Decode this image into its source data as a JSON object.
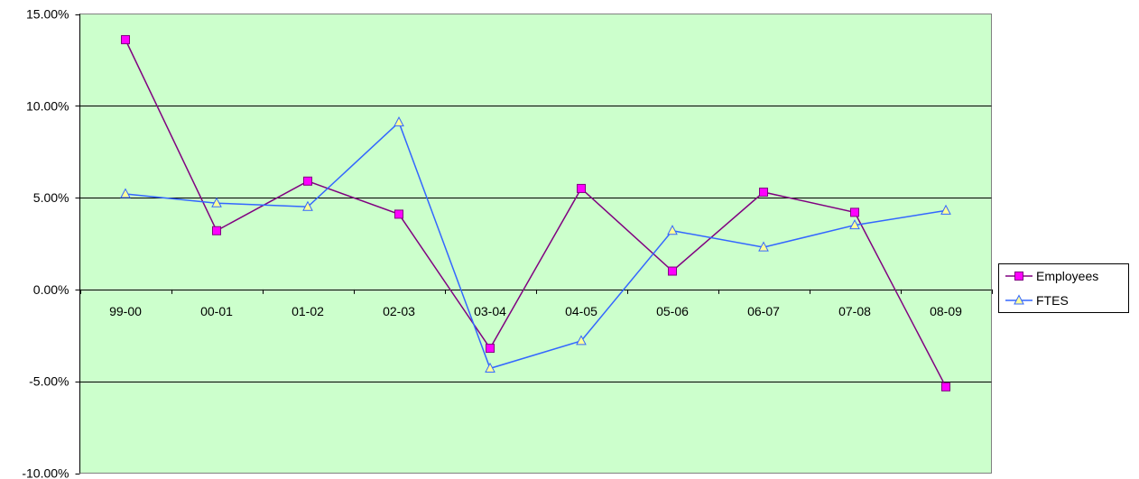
{
  "chart_data": {
    "type": "line",
    "categories": [
      "99-00",
      "00-01",
      "01-02",
      "02-03",
      "03-04",
      "04-05",
      "05-06",
      "06-07",
      "07-08",
      "08-09"
    ],
    "ylim": [
      -10,
      15
    ],
    "y_ticks": [
      15,
      10,
      5,
      0,
      -5,
      -10
    ],
    "y_tick_labels": [
      "15.00%",
      "10.00%",
      "5.00%",
      "0.00%",
      "-5.00%",
      "-10.00%"
    ],
    "grid": "horizontal",
    "legend_position": "right",
    "plot_background": "#ccffcc",
    "series": [
      {
        "name": "Employees",
        "color": "#800080",
        "marker": "square",
        "marker_fill": "#ff00ff",
        "values": [
          13.6,
          3.2,
          5.9,
          4.1,
          -3.2,
          5.5,
          1.0,
          5.3,
          4.2,
          -5.3
        ]
      },
      {
        "name": "FTES",
        "color": "#3366ff",
        "marker": "triangle",
        "marker_fill": "#ffff99",
        "values": [
          5.2,
          4.7,
          4.5,
          9.1,
          -4.3,
          -2.8,
          3.2,
          2.3,
          3.5,
          4.3
        ]
      }
    ]
  }
}
